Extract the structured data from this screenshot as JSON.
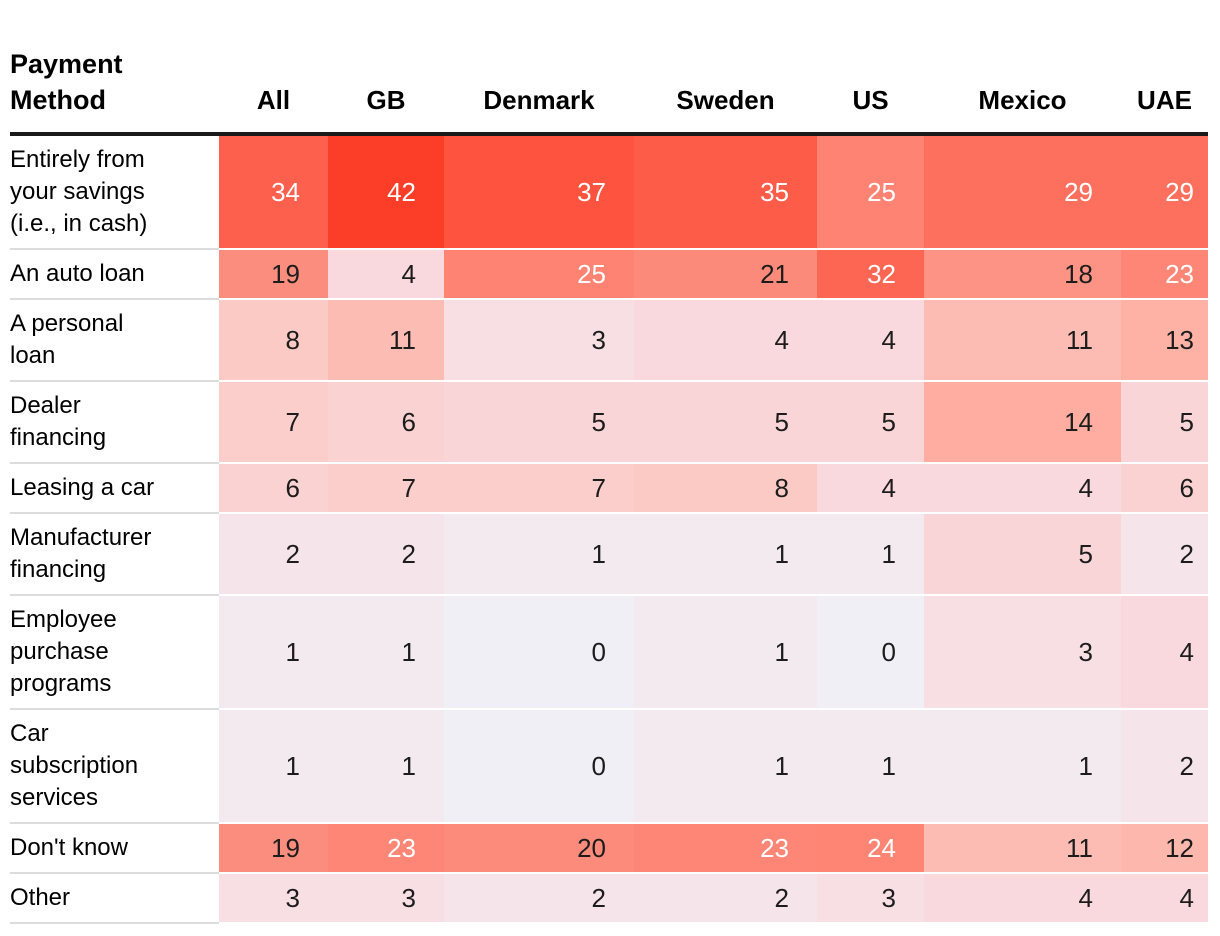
{
  "header": {
    "row_label": "Payment\nMethod",
    "columns": [
      "All",
      "GB",
      "Denmark",
      "Sweden",
      "US",
      "Mexico",
      "UAE"
    ]
  },
  "chart_data": {
    "type": "heatmap",
    "title": "Payment Method",
    "columns": [
      "All",
      "GB",
      "Denmark",
      "Sweden",
      "US",
      "Mexico",
      "UAE"
    ],
    "rows": [
      {
        "label": "Entirely from\nyour savings\n(i.e., in cash)",
        "values": [
          34,
          42,
          37,
          35,
          25,
          29,
          29
        ]
      },
      {
        "label": "An auto loan",
        "values": [
          19,
          4,
          25,
          21,
          32,
          18,
          23
        ]
      },
      {
        "label": "A personal\nloan",
        "values": [
          8,
          11,
          3,
          4,
          4,
          11,
          13
        ]
      },
      {
        "label": "Dealer\nfinancing",
        "values": [
          7,
          6,
          5,
          5,
          5,
          14,
          5
        ]
      },
      {
        "label": "Leasing a car",
        "values": [
          6,
          7,
          7,
          8,
          4,
          4,
          6
        ]
      },
      {
        "label": "Manufacturer\nfinancing",
        "values": [
          2,
          2,
          1,
          1,
          1,
          5,
          2
        ]
      },
      {
        "label": "Employee\npurchase\nprograms",
        "values": [
          1,
          1,
          0,
          1,
          0,
          3,
          4
        ]
      },
      {
        "label": "Car\nsubscription\nservices",
        "values": [
          1,
          1,
          0,
          1,
          1,
          1,
          2
        ]
      },
      {
        "label": "Don't know",
        "values": [
          19,
          23,
          20,
          23,
          24,
          11,
          12
        ]
      },
      {
        "label": "Other",
        "values": [
          3,
          3,
          2,
          2,
          3,
          4,
          4
        ]
      }
    ],
    "value_range": [
      0,
      42
    ],
    "legend": "none",
    "color_scale": {
      "anchors": [
        {
          "value": 0,
          "color": "#f1eff6"
        },
        {
          "value": 4,
          "color": "#f9d9dd"
        },
        {
          "value": 8,
          "color": "#fbcac5"
        },
        {
          "value": 14,
          "color": "#ffada0"
        },
        {
          "value": 19,
          "color": "#fb8d7e"
        },
        {
          "value": 25,
          "color": "#fe8372"
        },
        {
          "value": 29,
          "color": "#fc705d"
        },
        {
          "value": 34,
          "color": "#fd604c"
        },
        {
          "value": 42,
          "color": "#fc3e28"
        }
      ]
    },
    "text_colors": {
      "dark": "#1c1c1c",
      "light": "#ffffff",
      "light_threshold": 23
    },
    "header_rule_color": "#1a1a1a"
  }
}
